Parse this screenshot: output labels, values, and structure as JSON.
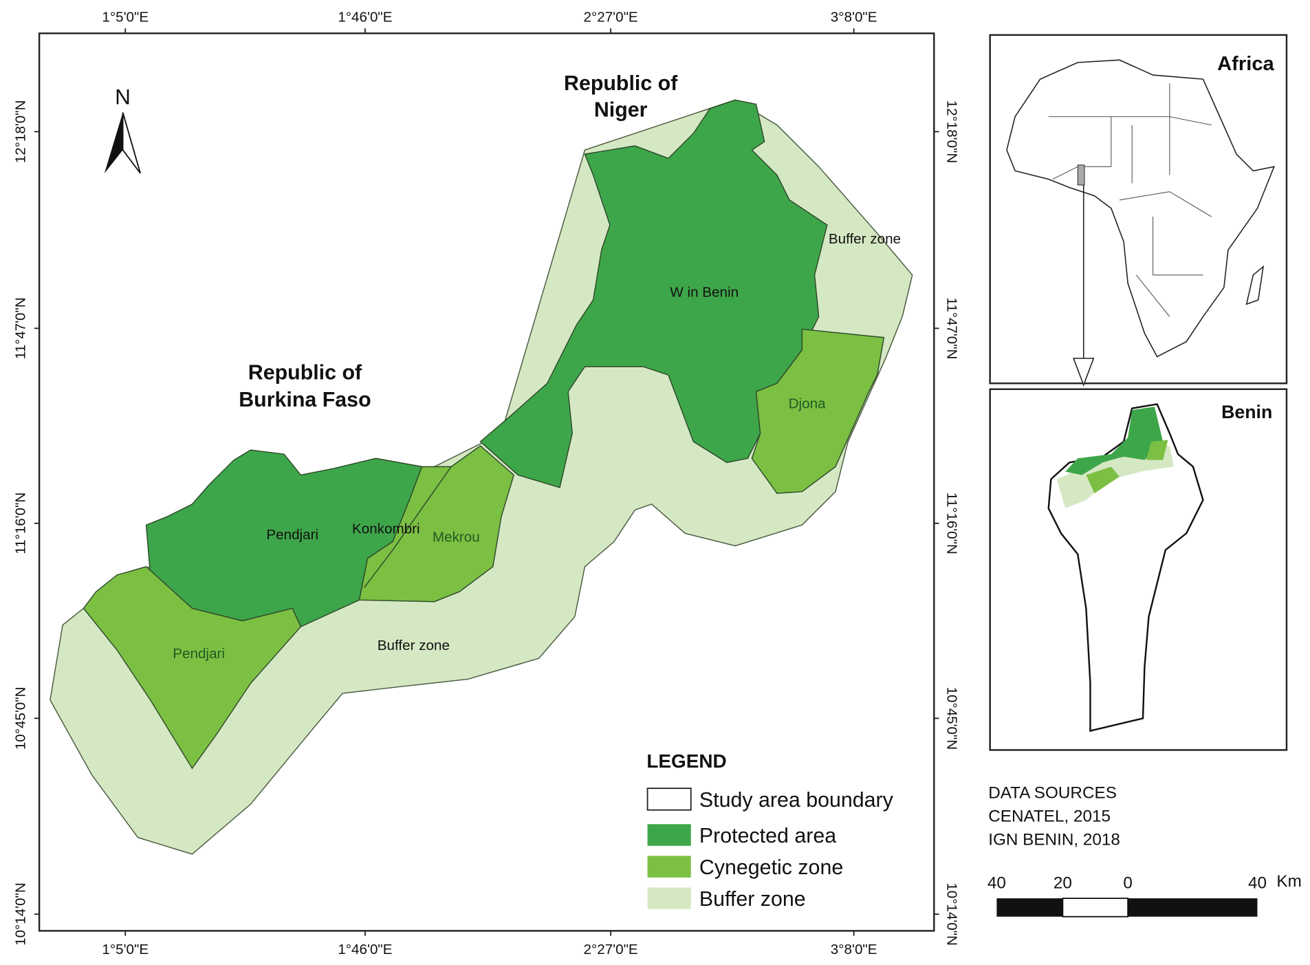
{
  "main_map": {
    "top_axis": [
      "1°5'0\"E",
      "1°46'0\"E",
      "2°27'0\"E",
      "3°8'0\"E"
    ],
    "bottom_axis": [
      "1°5'0\"E",
      "1°46'0\"E",
      "2°27'0\"E",
      "3°8'0\"E"
    ],
    "left_axis": [
      "12°18'0\"N",
      "11°47'0\"N",
      "11°16'0\"N",
      "10°45'0\"N",
      "10°14'0\"N"
    ],
    "right_axis": [
      "12°18'0\"N",
      "11°47'0\"N",
      "11°16'0\"N",
      "10°45'0\"N",
      "10°14'0\"N"
    ],
    "north": "N",
    "countries": [
      [
        "Republic of",
        "Niger"
      ],
      [
        "Republic of",
        "Burkina Faso"
      ]
    ],
    "zones": [
      "W in Benin",
      "Buffer zone",
      "Djona",
      "Pendjari",
      "Konkombri",
      "Mekrou",
      "Pendjari",
      "Buffer zone"
    ]
  },
  "legend": {
    "title": "LEGEND",
    "items": [
      "Study area boundary",
      "Protected area",
      "Cynegetic zone",
      "Buffer zone"
    ]
  },
  "inset_africa": {
    "title": "Africa"
  },
  "inset_benin": {
    "title": "Benin"
  },
  "data_sources": [
    "DATA SOURCES",
    "CENATEL, 2015",
    "IGN BENIN, 2018"
  ],
  "scale_bar": {
    "labels": [
      "40",
      "20",
      "0",
      "40"
    ],
    "unit": "Km"
  }
}
